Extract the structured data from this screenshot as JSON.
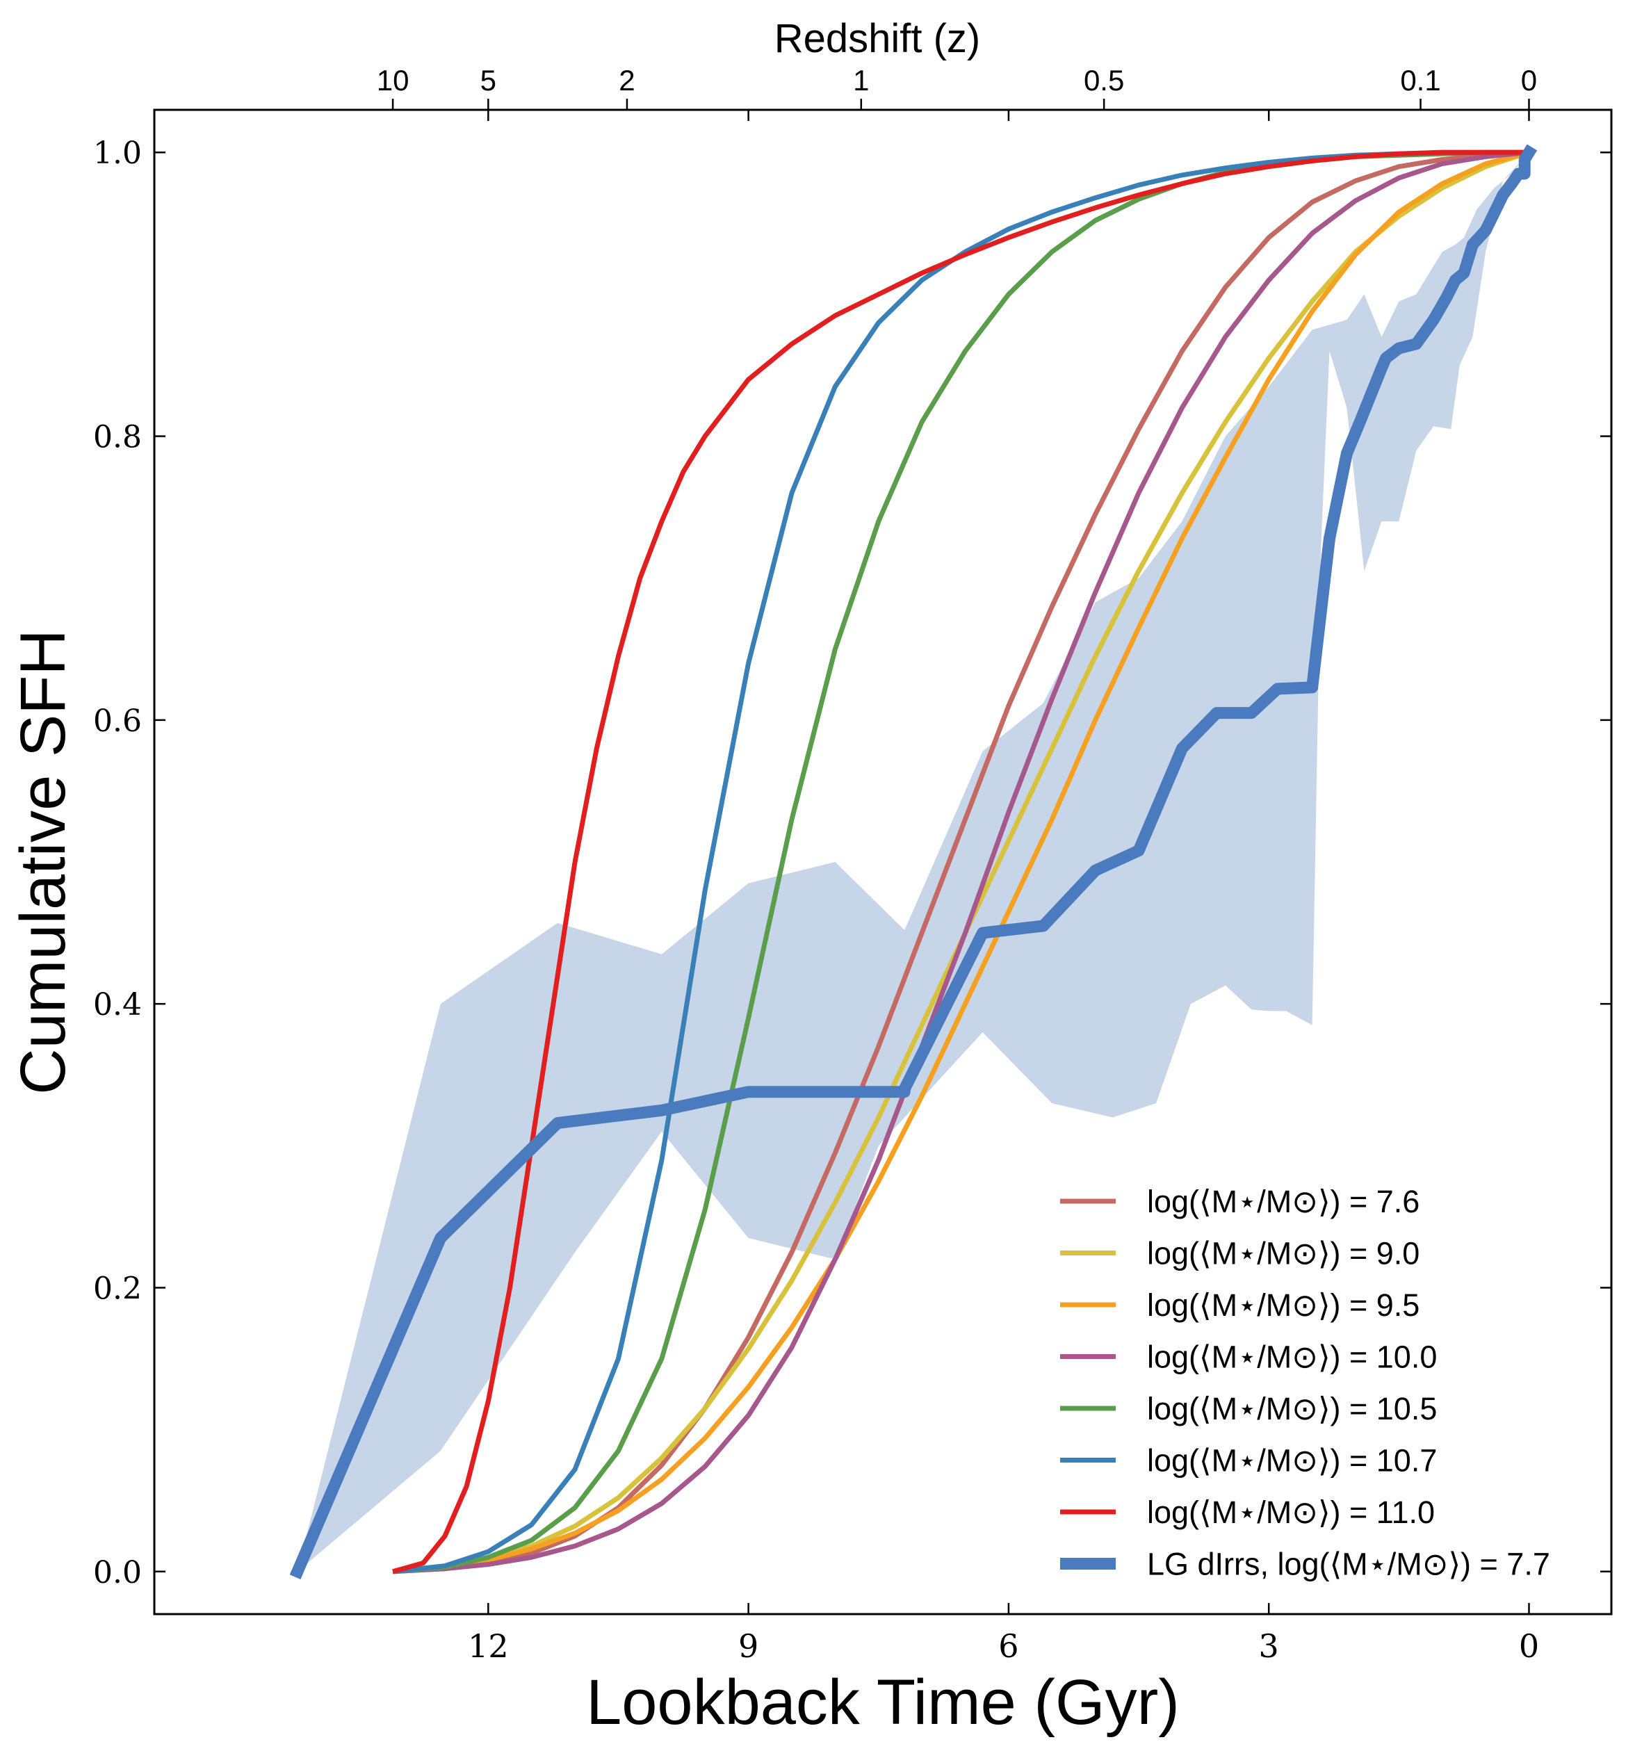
{
  "chart_data": {
    "type": "line",
    "title": "",
    "xlabel": "Lookback Time (Gyr)",
    "ylabel": "Cumulative SFH",
    "top_xlabel": "Redshift (z)",
    "xlim": [
      15.85,
      -0.95
    ],
    "ylim": [
      -0.03,
      1.03
    ],
    "xticks": [
      12,
      9,
      6,
      3,
      0
    ],
    "xtick_labels": [
      "12",
      "9",
      "6",
      "3",
      "0"
    ],
    "yticks": [
      0.0,
      0.2,
      0.4,
      0.6,
      0.8,
      1.0
    ],
    "ytick_labels": [
      "0.0",
      "0.2",
      "0.4",
      "0.6",
      "0.8",
      "1.0"
    ],
    "top_ticks": [
      {
        "label": "10",
        "t": 13.1
      },
      {
        "label": "5",
        "t": 12.0
      },
      {
        "label": "2",
        "t": 10.4
      },
      {
        "label": "1",
        "t": 7.7
      },
      {
        "label": "0.5",
        "t": 4.9
      },
      {
        "label": "0.1",
        "t": 1.25
      },
      {
        "label": "0",
        "t": 0.0
      }
    ],
    "grid": false,
    "legend_position": "lower-right",
    "series": [
      {
        "name": "log(⟨M⋆/M⊙⟩) = 7.6",
        "color": "#c56a63",
        "width": 7,
        "x": [
          13.1,
          12.5,
          12.0,
          11.5,
          11.0,
          10.5,
          10.0,
          9.5,
          9.0,
          8.5,
          8.0,
          7.5,
          7.0,
          6.5,
          6.0,
          5.5,
          5.0,
          4.5,
          4.0,
          3.5,
          3.0,
          2.5,
          2.0,
          1.5,
          1.0,
          0.5,
          0.0
        ],
        "y": [
          0.0,
          0.002,
          0.006,
          0.013,
          0.025,
          0.045,
          0.075,
          0.115,
          0.165,
          0.225,
          0.295,
          0.37,
          0.45,
          0.53,
          0.61,
          0.68,
          0.745,
          0.805,
          0.86,
          0.905,
          0.94,
          0.965,
          0.98,
          0.99,
          0.995,
          0.998,
          1.0
        ]
      },
      {
        "name": "log(⟨M⋆/M⊙⟩) = 9.0",
        "color": "#d8c23c",
        "width": 7,
        "x": [
          13.1,
          12.5,
          12.0,
          11.5,
          11.0,
          10.5,
          10.0,
          9.5,
          9.0,
          8.5,
          8.0,
          7.5,
          7.0,
          6.5,
          6.0,
          5.5,
          5.0,
          4.5,
          4.0,
          3.5,
          3.0,
          2.5,
          2.0,
          1.5,
          1.0,
          0.5,
          0.0
        ],
        "y": [
          0.0,
          0.003,
          0.009,
          0.018,
          0.032,
          0.052,
          0.08,
          0.115,
          0.157,
          0.205,
          0.26,
          0.32,
          0.385,
          0.45,
          0.515,
          0.58,
          0.645,
          0.705,
          0.76,
          0.81,
          0.855,
          0.895,
          0.93,
          0.955,
          0.975,
          0.99,
          1.0
        ]
      },
      {
        "name": "log(⟨M⋆/M⊙⟩) = 9.5",
        "color": "#f5a020",
        "width": 7,
        "x": [
          13.1,
          12.5,
          12.0,
          11.5,
          11.0,
          10.5,
          10.0,
          9.5,
          9.0,
          8.5,
          8.0,
          7.5,
          7.0,
          6.5,
          6.0,
          5.5,
          5.0,
          4.5,
          4.0,
          3.5,
          3.0,
          2.5,
          2.0,
          1.5,
          1.0,
          0.5,
          0.0
        ],
        "y": [
          0.0,
          0.003,
          0.008,
          0.016,
          0.027,
          0.043,
          0.065,
          0.094,
          0.13,
          0.172,
          0.22,
          0.275,
          0.335,
          0.4,
          0.465,
          0.53,
          0.6,
          0.665,
          0.728,
          0.785,
          0.84,
          0.888,
          0.928,
          0.958,
          0.978,
          0.992,
          1.0
        ]
      },
      {
        "name": "log(⟨M⋆/M⊙⟩) = 10.0",
        "color": "#a6578c",
        "width": 7,
        "x": [
          13.1,
          12.5,
          12.0,
          11.5,
          11.0,
          10.5,
          10.0,
          9.5,
          9.0,
          8.5,
          8.0,
          7.5,
          7.0,
          6.5,
          6.0,
          5.5,
          5.0,
          4.5,
          4.0,
          3.5,
          3.0,
          2.5,
          2.0,
          1.5,
          1.0,
          0.5,
          0.0
        ],
        "y": [
          0.0,
          0.002,
          0.005,
          0.01,
          0.018,
          0.03,
          0.048,
          0.074,
          0.11,
          0.158,
          0.22,
          0.29,
          0.37,
          0.45,
          0.535,
          0.615,
          0.69,
          0.76,
          0.82,
          0.87,
          0.91,
          0.943,
          0.966,
          0.982,
          0.992,
          0.997,
          1.0
        ]
      },
      {
        "name": "log(⟨M⋆/M⊙⟩) = 10.5",
        "color": "#5a9e4b",
        "width": 7,
        "x": [
          13.1,
          12.5,
          12.0,
          11.5,
          11.0,
          10.5,
          10.0,
          9.5,
          9.0,
          8.5,
          8.0,
          7.5,
          7.0,
          6.5,
          6.0,
          5.5,
          5.0,
          4.5,
          4.0,
          3.5,
          3.0,
          2.5,
          2.0,
          1.5,
          1.0,
          0.5,
          0.0
        ],
        "y": [
          0.0,
          0.003,
          0.01,
          0.022,
          0.045,
          0.085,
          0.15,
          0.255,
          0.39,
          0.53,
          0.65,
          0.74,
          0.81,
          0.86,
          0.9,
          0.93,
          0.952,
          0.967,
          0.978,
          0.986,
          0.991,
          0.995,
          0.997,
          0.998,
          0.999,
          1.0,
          1.0
        ]
      },
      {
        "name": "log(⟨M⋆/M⊙⟩) = 10.7",
        "color": "#3a80b8",
        "width": 7,
        "x": [
          13.1,
          12.5,
          12.0,
          11.5,
          11.0,
          10.5,
          10.0,
          9.5,
          9.0,
          8.5,
          8.0,
          7.5,
          7.0,
          6.5,
          6.0,
          5.5,
          5.0,
          4.5,
          4.0,
          3.5,
          3.0,
          2.5,
          2.0,
          1.5,
          1.0,
          0.5,
          0.0
        ],
        "y": [
          0.0,
          0.004,
          0.014,
          0.033,
          0.072,
          0.15,
          0.29,
          0.48,
          0.64,
          0.76,
          0.835,
          0.88,
          0.91,
          0.93,
          0.946,
          0.958,
          0.968,
          0.977,
          0.984,
          0.989,
          0.993,
          0.996,
          0.998,
          0.999,
          1.0,
          1.0,
          1.0
        ]
      },
      {
        "name": "log(⟨M⋆/M⊙⟩) = 11.0",
        "color": "#e11f1f",
        "width": 7,
        "x": [
          13.1,
          12.75,
          12.5,
          12.25,
          12.0,
          11.75,
          11.5,
          11.25,
          11.0,
          10.75,
          10.5,
          10.25,
          10.0,
          9.75,
          9.5,
          9.25,
          9.0,
          8.5,
          8.0,
          7.5,
          7.0,
          6.5,
          6.0,
          5.5,
          5.0,
          4.5,
          4.0,
          3.5,
          3.0,
          2.5,
          2.0,
          1.5,
          1.0,
          0.5,
          0.0
        ],
        "y": [
          0.0,
          0.006,
          0.025,
          0.06,
          0.12,
          0.2,
          0.3,
          0.4,
          0.5,
          0.58,
          0.645,
          0.7,
          0.74,
          0.775,
          0.8,
          0.82,
          0.84,
          0.865,
          0.885,
          0.9,
          0.915,
          0.928,
          0.94,
          0.951,
          0.961,
          0.97,
          0.978,
          0.985,
          0.99,
          0.994,
          0.997,
          0.999,
          1.0,
          1.0,
          1.0
        ]
      },
      {
        "name": "LG dIrrs, log(⟨M⋆/M⊙⟩) = 7.7",
        "color": "#4a7bbf",
        "width": 17,
        "x": [
          14.2,
          12.55,
          11.2,
          10.0,
          9.0,
          7.2,
          7.2,
          6.3,
          5.6,
          5.0,
          4.5,
          4.0,
          3.6,
          3.2,
          2.9,
          2.5,
          2.3,
          2.1,
          1.95,
          1.7,
          1.65,
          1.5,
          1.3,
          1.1,
          0.95,
          0.85,
          0.75,
          0.65,
          0.5,
          0.42,
          0.3,
          0.2,
          0.12,
          0.05,
          0.05,
          0.0
        ],
        "y": [
          0.0,
          0.235,
          0.316,
          0.325,
          0.338,
          0.338,
          0.34,
          0.45,
          0.455,
          0.494,
          0.508,
          0.58,
          0.605,
          0.605,
          0.622,
          0.623,
          0.728,
          0.788,
          0.81,
          0.848,
          0.855,
          0.862,
          0.865,
          0.882,
          0.898,
          0.91,
          0.915,
          0.935,
          0.945,
          0.955,
          0.97,
          0.978,
          0.985,
          0.985,
          0.995,
          1.0
        ]
      }
    ],
    "band": {
      "color": "#c7d5e8",
      "x_upper": [
        14.2,
        12.55,
        11.2,
        10.0,
        9.0,
        8.0,
        7.2,
        6.3,
        5.6,
        5.0,
        4.5,
        4.0,
        3.5,
        3.0,
        2.5,
        2.1,
        1.9,
        1.7,
        1.5,
        1.3,
        1.0,
        0.85,
        0.75,
        0.6,
        0.4,
        0.2,
        0.0
      ],
      "y_upper": [
        0.0,
        0.4,
        0.457,
        0.435,
        0.485,
        0.5,
        0.452,
        0.578,
        0.612,
        0.683,
        0.7,
        0.74,
        0.8,
        0.835,
        0.875,
        0.882,
        0.9,
        0.87,
        0.895,
        0.9,
        0.93,
        0.935,
        0.94,
        0.96,
        0.975,
        0.985,
        1.0
      ],
      "x_lower": [
        0.0,
        0.3,
        0.5,
        0.65,
        0.8,
        0.9,
        1.1,
        1.3,
        1.5,
        1.7,
        1.9,
        2.1,
        2.3,
        2.4,
        2.5,
        2.8,
        3.0,
        3.2,
        3.5,
        3.9,
        4.3,
        4.8,
        5.5,
        6.3,
        7.2,
        7.5,
        8.0,
        9.0,
        10.0,
        11.0,
        12.55,
        14.2
      ],
      "y_lower": [
        1.0,
        0.98,
        0.93,
        0.87,
        0.85,
        0.805,
        0.807,
        0.79,
        0.74,
        0.74,
        0.705,
        0.82,
        0.86,
        0.72,
        0.385,
        0.395,
        0.395,
        0.396,
        0.413,
        0.4,
        0.33,
        0.32,
        0.33,
        0.38,
        0.32,
        0.3,
        0.22,
        0.235,
        0.31,
        0.225,
        0.085,
        0.0
      ]
    }
  }
}
